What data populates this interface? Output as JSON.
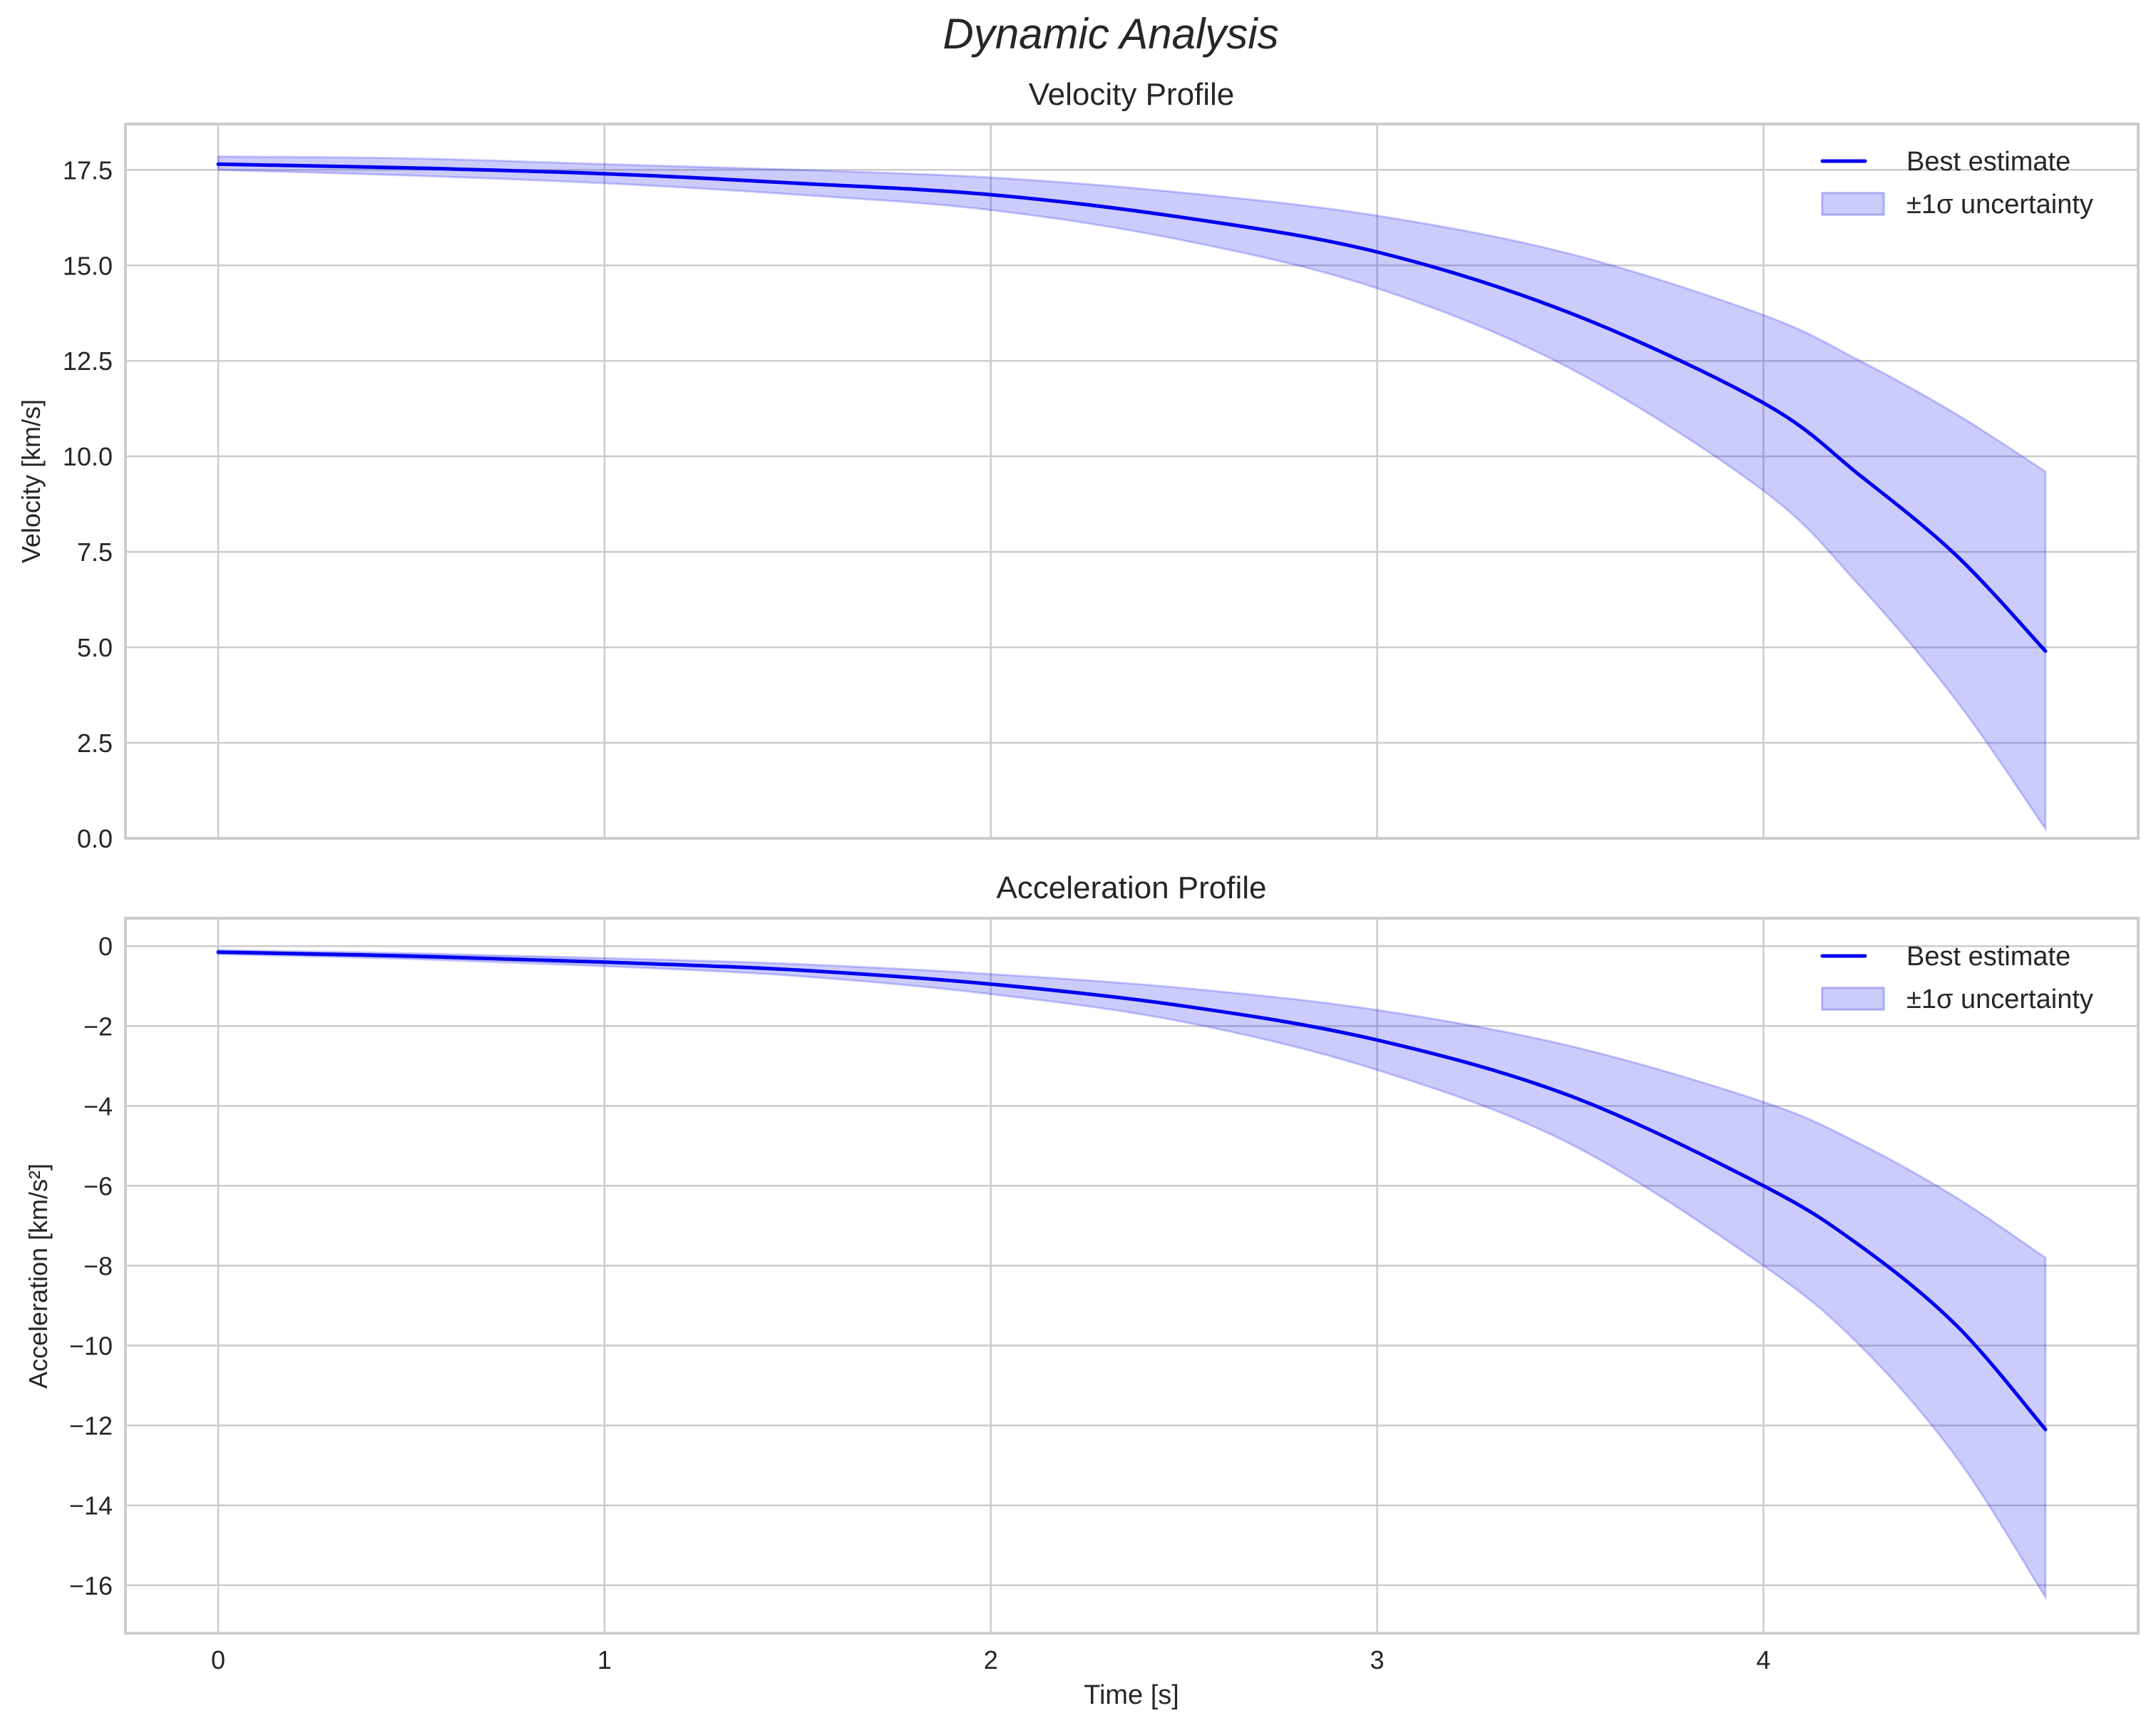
{
  "figure": {
    "suptitle": "Dynamic Analysis",
    "xlabel": "Time [s]"
  },
  "colors": {
    "line": "#0000ee",
    "band_fill": "#ccccfa",
    "band_edge": "#aaaaf2",
    "grid": "#cccccc",
    "text": "#262626"
  },
  "chart_data": [
    {
      "type": "line",
      "title": "Velocity Profile",
      "xlabel": "",
      "ylabel": "Velocity [km/s]",
      "xlim": [
        -0.24,
        4.97
      ],
      "ylim": [
        0.0,
        18.7
      ],
      "xticks": [
        0,
        1,
        2,
        3,
        4
      ],
      "yticks": [
        0.0,
        2.5,
        5.0,
        7.5,
        10.0,
        12.5,
        15.0,
        17.5
      ],
      "ytick_labels": [
        "0.0",
        "2.5",
        "5.0",
        "7.5",
        "10.0",
        "12.5",
        "15.0",
        "17.5"
      ],
      "grid": true,
      "legend": {
        "position": "upper right",
        "entries": [
          "Best estimate",
          "±1σ uncertainty"
        ]
      },
      "x": [
        0,
        0.5,
        1.0,
        1.5,
        2.0,
        2.5,
        3.0,
        3.5,
        4.0,
        4.25,
        4.5,
        4.73
      ],
      "series": [
        {
          "name": "Best estimate",
          "values": [
            17.65,
            17.55,
            17.4,
            17.15,
            16.85,
            16.25,
            15.35,
            13.75,
            11.4,
            9.5,
            7.4,
            4.9
          ]
        },
        {
          "name": "±1σ upper",
          "values": [
            17.85,
            17.8,
            17.65,
            17.5,
            17.3,
            16.9,
            16.3,
            15.3,
            13.7,
            12.5,
            11.1,
            9.6
          ]
        },
        {
          "name": "±1σ lower",
          "values": [
            17.5,
            17.35,
            17.15,
            16.85,
            16.45,
            15.65,
            14.4,
            12.3,
            9.1,
            6.6,
            3.6,
            0.25
          ]
        }
      ]
    },
    {
      "type": "line",
      "title": "Acceleration Profile",
      "xlabel": "Time [s]",
      "ylabel": "Acceleration [km/s²]",
      "xlim": [
        -0.24,
        4.97
      ],
      "ylim": [
        -17.2,
        0.7
      ],
      "xticks": [
        0,
        1,
        2,
        3,
        4
      ],
      "yticks": [
        0,
        -2,
        -4,
        -6,
        -8,
        -10,
        -12,
        -14,
        -16
      ],
      "ytick_labels": [
        "0",
        "−2",
        "−4",
        "−6",
        "−8",
        "−10",
        "−12",
        "−14",
        "−16"
      ],
      "grid": true,
      "legend": {
        "position": "upper right",
        "entries": [
          "Best estimate",
          "±1σ uncertainty"
        ]
      },
      "x": [
        0,
        0.5,
        1.0,
        1.5,
        2.0,
        2.5,
        3.0,
        3.5,
        4.0,
        4.25,
        4.5,
        4.73
      ],
      "series": [
        {
          "name": "Best estimate",
          "values": [
            -0.15,
            -0.25,
            -0.4,
            -0.6,
            -0.95,
            -1.5,
            -2.35,
            -3.75,
            -6.0,
            -7.5,
            -9.5,
            -12.1
          ]
        },
        {
          "name": "±1σ upper",
          "values": [
            -0.1,
            -0.18,
            -0.3,
            -0.45,
            -0.7,
            -1.05,
            -1.6,
            -2.5,
            -3.9,
            -4.95,
            -6.3,
            -7.8
          ]
        },
        {
          "name": "±1σ lower",
          "values": [
            -0.2,
            -0.32,
            -0.5,
            -0.75,
            -1.2,
            -1.9,
            -3.1,
            -4.95,
            -8.0,
            -10.0,
            -12.8,
            -16.3
          ]
        }
      ]
    }
  ]
}
